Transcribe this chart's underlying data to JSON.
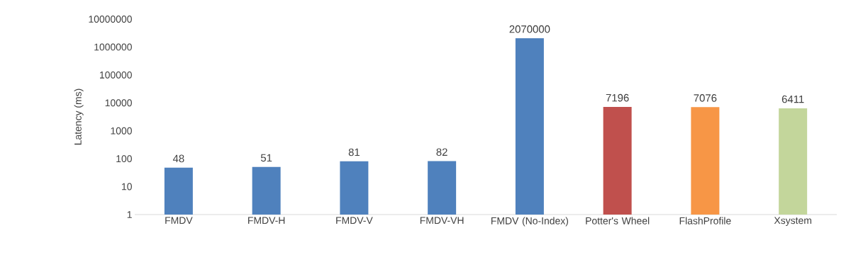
{
  "chart_data": {
    "type": "bar",
    "ylabel": "Latency (ms)",
    "log": "y",
    "categories": [
      "FMDV",
      "FMDV-H",
      "FMDV-V",
      "FMDV-VH",
      "FMDV (No-Index)",
      "Potter's Wheel",
      "FlashProfile",
      "Xsystem"
    ],
    "values": [
      48,
      51,
      81,
      82,
      2070000,
      7196,
      7076,
      6411
    ],
    "colors": [
      "#4f81bd",
      "#4f81bd",
      "#4f81bd",
      "#4f81bd",
      "#4f81bd",
      "#c0504d",
      "#f79646",
      "#c3d69b"
    ],
    "ylim": [
      1,
      10000000
    ],
    "yticks": [
      1,
      10,
      100,
      1000,
      10000,
      100000,
      1000000,
      10000000
    ],
    "data_labels": true
  }
}
